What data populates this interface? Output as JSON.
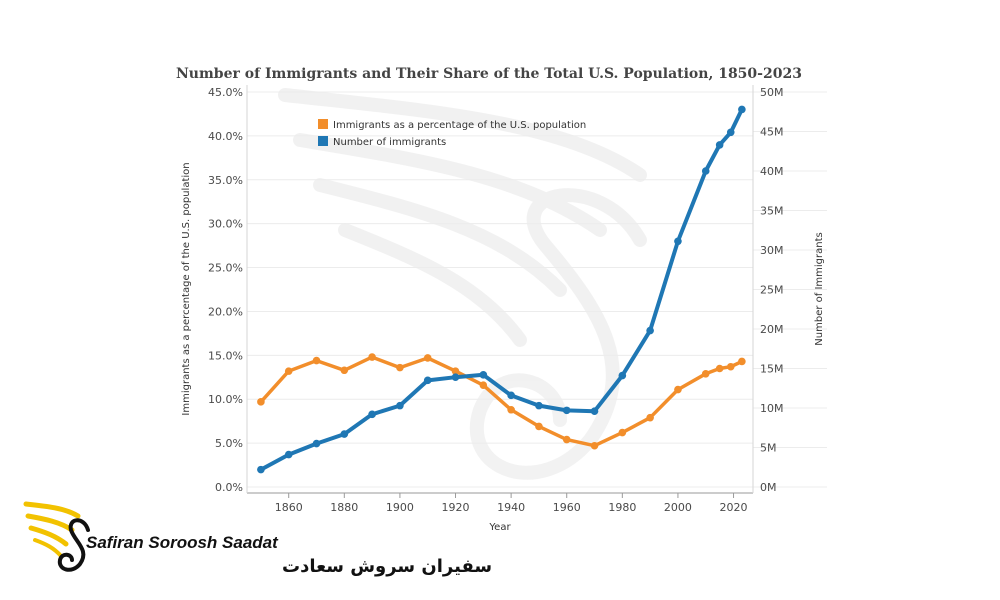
{
  "chart_data": {
    "type": "line",
    "title": "Number of Immigrants and Their Share of the Total U.S. Population, 1850-2023",
    "xlabel": "Year",
    "ylabel_left": "Immigrants as a percentage of the U.S. population",
    "ylabel_right": "Number of Immigrants",
    "xlim": [
      1845,
      2027
    ],
    "ylim_left": [
      0,
      45
    ],
    "ylim_right": [
      0,
      50
    ],
    "x_ticks": [
      1860,
      1880,
      1900,
      1920,
      1940,
      1960,
      1980,
      2000,
      2020
    ],
    "y_left_ticks": [
      "0.0%",
      "5.0%",
      "10.0%",
      "15.0%",
      "20.0%",
      "25.0%",
      "30.0%",
      "35.0%",
      "40.0%",
      "45.0%"
    ],
    "y_right_ticks": [
      "0M",
      "5M",
      "10M",
      "15M",
      "20M",
      "25M",
      "30M",
      "35M",
      "40M",
      "45M",
      "50M"
    ],
    "legend_position": "top-left",
    "series": [
      {
        "name": "Immigrants as a percentage of the U.S. population",
        "axis": "left",
        "color": "#f28e2b",
        "x": [
          1850,
          1860,
          1870,
          1880,
          1890,
          1900,
          1910,
          1920,
          1930,
          1940,
          1950,
          1960,
          1970,
          1980,
          1990,
          2000,
          2010,
          2015,
          2019,
          2023
        ],
        "values": [
          9.7,
          13.2,
          14.4,
          13.3,
          14.8,
          13.6,
          14.7,
          13.2,
          11.6,
          8.8,
          6.9,
          5.4,
          4.7,
          6.2,
          7.9,
          11.1,
          12.9,
          13.5,
          13.7,
          14.3
        ]
      },
      {
        "name": "Number of immigrants",
        "axis": "right",
        "color": "#1f77b4",
        "x": [
          1850,
          1860,
          1870,
          1880,
          1890,
          1900,
          1910,
          1920,
          1930,
          1940,
          1950,
          1960,
          1970,
          1980,
          1990,
          2000,
          2010,
          2015,
          2019,
          2023
        ],
        "values": [
          2.2,
          4.1,
          5.5,
          6.7,
          9.2,
          10.3,
          13.5,
          13.9,
          14.2,
          11.6,
          10.3,
          9.7,
          9.6,
          14.1,
          19.8,
          31.1,
          40.0,
          43.3,
          44.9,
          47.8
        ]
      }
    ]
  },
  "branding": {
    "name_en": "Safiran Soroosh Saadat",
    "name_fa": "سفیران سروش سعادت"
  }
}
